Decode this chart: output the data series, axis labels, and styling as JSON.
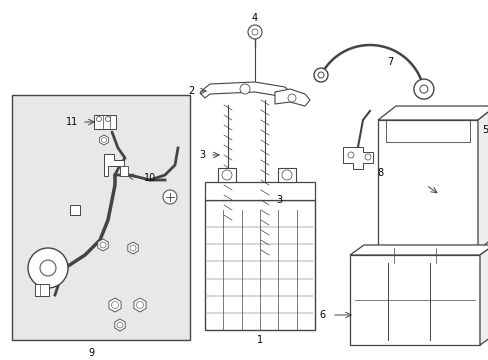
{
  "background_color": "#ffffff",
  "figure_width": 4.89,
  "figure_height": 3.6,
  "dpi": 100,
  "line_color": "#444444",
  "text_color": "#000000",
  "box_bg": "#e8e8e8"
}
